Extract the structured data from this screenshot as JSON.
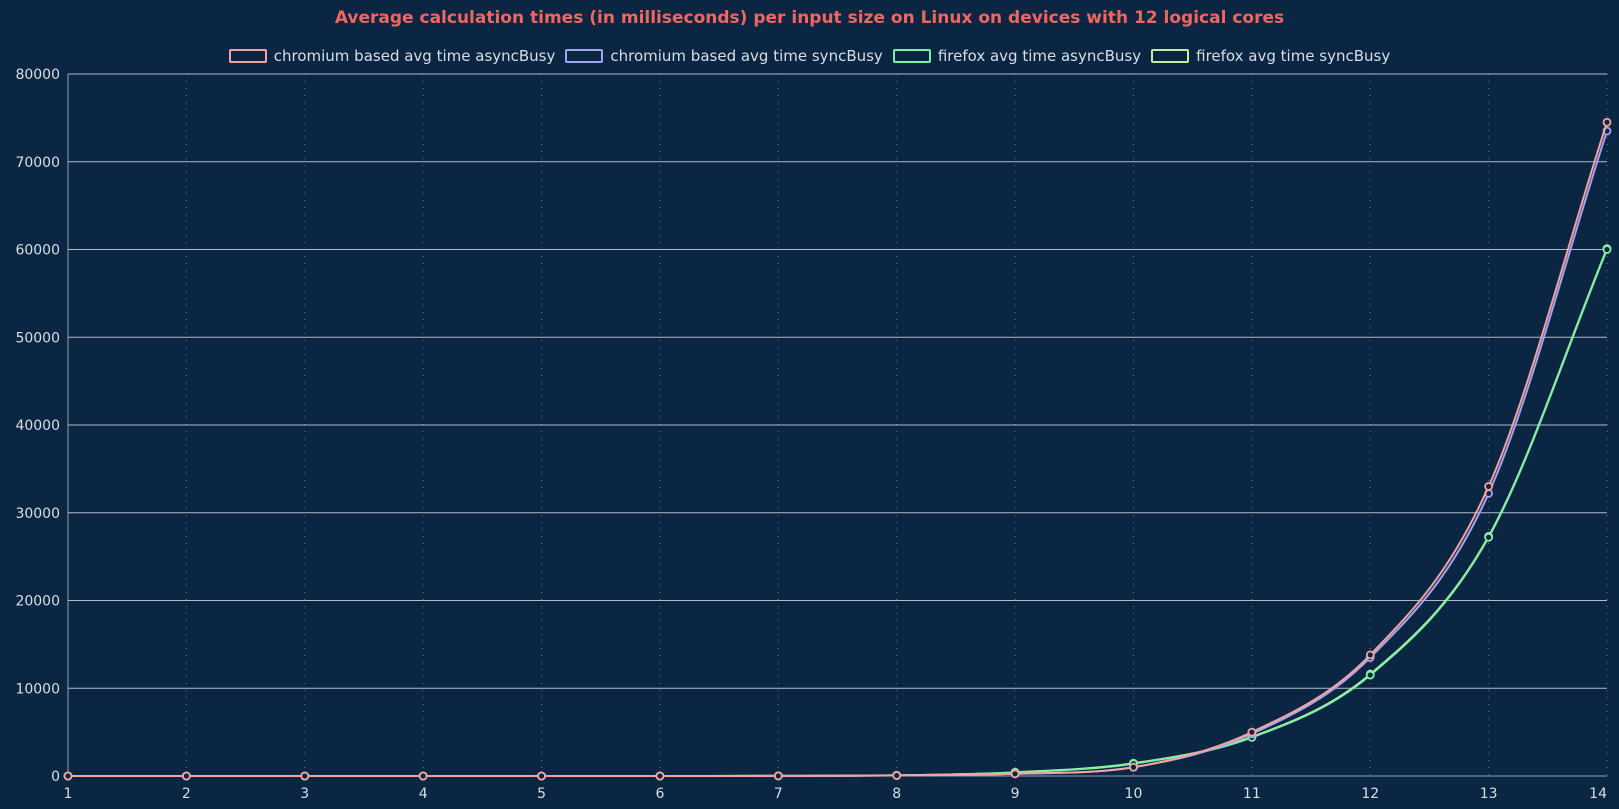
{
  "chart_data": {
    "type": "line",
    "title": "Average calculation times (in milliseconds) per input size on Linux on devices with 12 logical cores",
    "xlabel": "",
    "ylabel": "",
    "x": [
      1,
      2,
      3,
      4,
      5,
      6,
      7,
      8,
      9,
      10,
      11,
      12,
      13,
      14
    ],
    "xlim": [
      1,
      14
    ],
    "ylim": [
      0,
      80000
    ],
    "x_ticks": [
      "1",
      "2",
      "3",
      "4",
      "5",
      "6",
      "7",
      "8",
      "9",
      "10",
      "11",
      "12",
      "13",
      "14"
    ],
    "y_ticks": [
      "0",
      "10000",
      "20000",
      "30000",
      "40000",
      "50000",
      "60000",
      "70000",
      "80000"
    ],
    "grid": {
      "horizontal": "solid",
      "vertical": "dotted"
    },
    "legend_position": "top-center",
    "colors": {
      "background": "#0b2642",
      "title": "#f0675f",
      "text": "#d8dee6",
      "grid": "#cfd6de"
    },
    "series": [
      {
        "name": "chromium based avg time asyncBusy",
        "color": "#f4a3a0",
        "values": [
          0,
          0,
          0,
          0,
          0,
          0,
          10,
          60,
          250,
          1000,
          5000,
          13800,
          33000,
          74500
        ]
      },
      {
        "name": "chromium based avg time syncBusy",
        "color": "#a5a3f3",
        "values": [
          0,
          0,
          0,
          0,
          0,
          0,
          10,
          60,
          250,
          1000,
          4800,
          13500,
          32200,
          73500
        ]
      },
      {
        "name": "firefox avg time asyncBusy",
        "color": "#7ef0a6",
        "values": [
          0,
          0,
          0,
          0,
          0,
          0,
          10,
          80,
          400,
          1400,
          4400,
          11500,
          27200,
          60000
        ]
      },
      {
        "name": "firefox avg time syncBusy",
        "color": "#c8f09a",
        "values": [
          0,
          0,
          0,
          0,
          0,
          0,
          10,
          80,
          420,
          1450,
          4450,
          11600,
          27300,
          60100
        ]
      }
    ]
  }
}
